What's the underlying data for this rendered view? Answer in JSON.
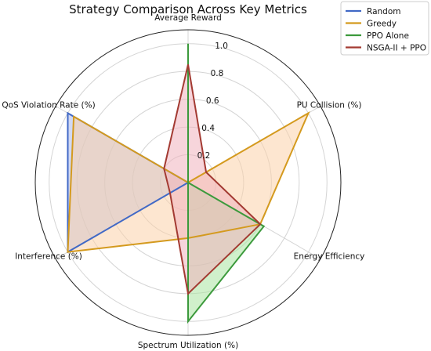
{
  "chart_data": {
    "type": "radar",
    "title": "Strategy Comparison Across Key Metrics",
    "axes": [
      "Average Reward",
      "PU Collision (%)",
      "Energy Efficiency",
      "Spectrum Utilization (%)",
      "Interference (%)",
      "QoS Violation Rate (%)"
    ],
    "radial_ticks": [
      "0.2",
      "0.4",
      "0.6",
      "0.8",
      "1.0"
    ],
    "rlim": [
      0,
      1.1
    ],
    "grid": true,
    "legend_position": "top-right",
    "series": [
      {
        "name": "Random",
        "color": "#4169c6",
        "fill": "#aab8ea",
        "values": [
          0.0,
          0.0,
          0.0,
          0.0,
          1.0,
          1.0
        ]
      },
      {
        "name": "Greedy",
        "color": "#d49a1e",
        "fill": "#fbd1aa",
        "values": [
          0.0,
          1.0,
          0.6,
          0.4,
          1.0,
          0.95
        ]
      },
      {
        "name": "PPO Alone",
        "color": "#3c9a3c",
        "fill": "#a9e3a0",
        "values": [
          1.0,
          0.0,
          0.63,
          1.0,
          0.0,
          0.0
        ]
      },
      {
        "name": "NSGA-II + PPO",
        "color": "#a33a32",
        "fill": "#f1b2bd",
        "values": [
          0.85,
          0.15,
          0.6,
          0.8,
          0.15,
          0.2
        ]
      }
    ]
  }
}
